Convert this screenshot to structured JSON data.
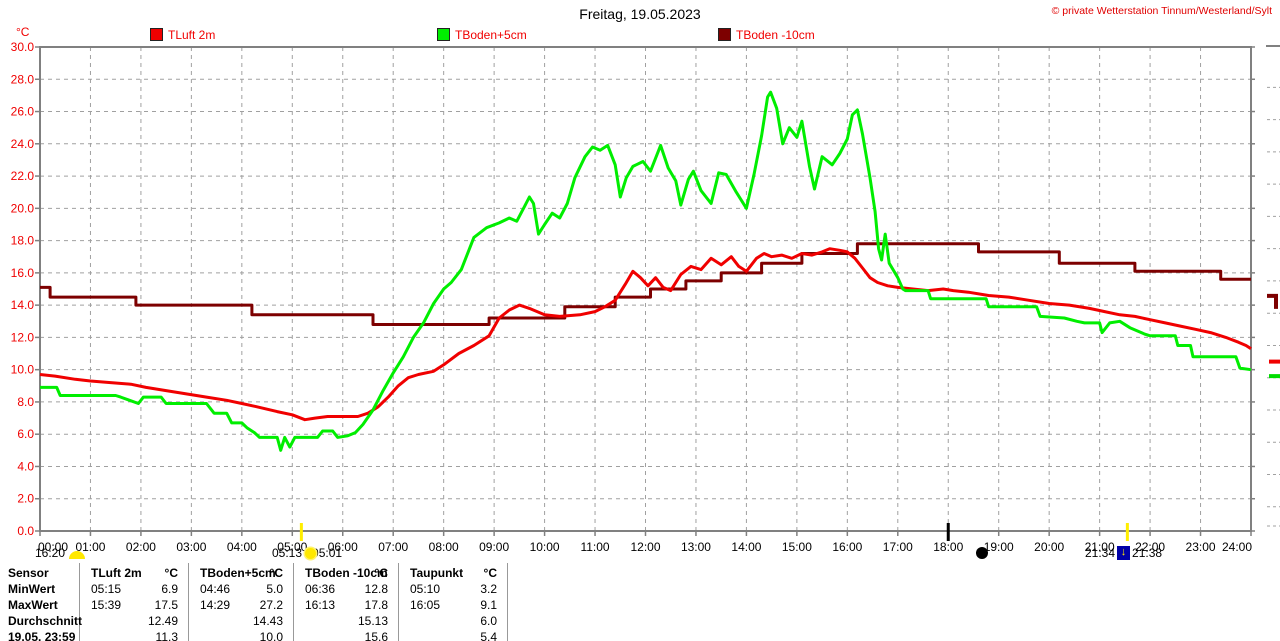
{
  "header": {
    "title": "Freitag, 19.05.2023",
    "copyright": "© private Wetterstation Tinnum/Westerland/Sylt"
  },
  "legend": {
    "unit_label": "°C",
    "items": [
      {
        "label": "TLuft 2m",
        "color": "#f00000"
      },
      {
        "label": "TBoden+5cm",
        "color": "#00ee00"
      },
      {
        "label": "TBoden -10cm",
        "color": "#7d0000"
      }
    ]
  },
  "chart_data": {
    "type": "line",
    "title": "Freitag, 19.05.2023",
    "ylabel": "°C",
    "ylim": [
      0,
      30
    ],
    "y_tick_step": 2,
    "grid": true,
    "legend_position": "top",
    "axis_label_color": "#f00000",
    "x_range_hours": [
      0,
      24
    ],
    "x_tick_labels": [
      "00:00",
      "01:00",
      "02:00",
      "03:00",
      "04:00",
      "05:00",
      "06:00",
      "07:00",
      "08:00",
      "09:00",
      "10:00",
      "11:00",
      "12:00",
      "13:00",
      "14:00",
      "15:00",
      "16:00",
      "17:00",
      "18:00",
      "19:00",
      "20:00",
      "21:00",
      "22:00",
      "23:00",
      "24:00"
    ],
    "y_tick_labels": [
      "30.0",
      "28.0",
      "26.0",
      "24.0",
      "22.0",
      "20.0",
      "18.0",
      "16.0",
      "14.0",
      "12.0",
      "10.0",
      "8.0",
      "6.0",
      "4.0",
      "2.0",
      "0.0"
    ],
    "series": [
      {
        "name": "TBoden -10cm",
        "color": "#7d0000",
        "interpolation": "step",
        "points": [
          [
            0,
            15.1
          ],
          [
            0.2,
            14.5
          ],
          [
            1.9,
            14.0
          ],
          [
            4.2,
            13.4
          ],
          [
            6.6,
            12.8
          ],
          [
            8.9,
            13.2
          ],
          [
            10.4,
            13.9
          ],
          [
            11.4,
            14.5
          ],
          [
            12.1,
            15.0
          ],
          [
            12.8,
            15.5
          ],
          [
            13.5,
            16.0
          ],
          [
            14.3,
            16.6
          ],
          [
            15.1,
            17.2
          ],
          [
            16.2,
            17.8
          ],
          [
            18.6,
            17.3
          ],
          [
            20.2,
            16.6
          ],
          [
            21.7,
            16.1
          ],
          [
            23.4,
            15.6
          ],
          [
            24,
            15.6
          ]
        ]
      },
      {
        "name": "TLuft 2m",
        "color": "#f00000",
        "interpolation": "linear",
        "points": [
          [
            0,
            9.7
          ],
          [
            0.3,
            9.6
          ],
          [
            0.7,
            9.4
          ],
          [
            1,
            9.3
          ],
          [
            1.4,
            9.2
          ],
          [
            1.8,
            9.1
          ],
          [
            2.1,
            8.9
          ],
          [
            2.5,
            8.7
          ],
          [
            2.9,
            8.5
          ],
          [
            3.3,
            8.3
          ],
          [
            3.7,
            8.1
          ],
          [
            4,
            7.9
          ],
          [
            4.3,
            7.7
          ],
          [
            4.7,
            7.4
          ],
          [
            5,
            7.2
          ],
          [
            5.25,
            6.9
          ],
          [
            5.45,
            7.0
          ],
          [
            5.7,
            7.1
          ],
          [
            6,
            7.1
          ],
          [
            6.3,
            7.1
          ],
          [
            6.5,
            7.3
          ],
          [
            6.7,
            7.7
          ],
          [
            6.9,
            8.3
          ],
          [
            7.1,
            9.0
          ],
          [
            7.3,
            9.5
          ],
          [
            7.5,
            9.7
          ],
          [
            7.8,
            9.9
          ],
          [
            8,
            10.3
          ],
          [
            8.3,
            11.0
          ],
          [
            8.6,
            11.5
          ],
          [
            8.9,
            12.1
          ],
          [
            9.1,
            13.2
          ],
          [
            9.3,
            13.7
          ],
          [
            9.5,
            14.0
          ],
          [
            9.7,
            13.8
          ],
          [
            10,
            13.4
          ],
          [
            10.3,
            13.3
          ],
          [
            10.7,
            13.4
          ],
          [
            11,
            13.6
          ],
          [
            11.2,
            13.9
          ],
          [
            11.4,
            14.3
          ],
          [
            11.6,
            15.3
          ],
          [
            11.75,
            16.1
          ],
          [
            11.9,
            15.7
          ],
          [
            12.05,
            15.2
          ],
          [
            12.2,
            15.7
          ],
          [
            12.35,
            15.1
          ],
          [
            12.5,
            14.9
          ],
          [
            12.7,
            15.9
          ],
          [
            12.9,
            16.4
          ],
          [
            13.1,
            16.2
          ],
          [
            13.3,
            16.9
          ],
          [
            13.5,
            16.5
          ],
          [
            13.7,
            17.0
          ],
          [
            13.85,
            16.4
          ],
          [
            14,
            16.1
          ],
          [
            14.2,
            16.9
          ],
          [
            14.35,
            17.2
          ],
          [
            14.5,
            17.0
          ],
          [
            14.7,
            17.1
          ],
          [
            14.9,
            16.9
          ],
          [
            15.1,
            17.2
          ],
          [
            15.3,
            17.1
          ],
          [
            15.5,
            17.3
          ],
          [
            15.65,
            17.5
          ],
          [
            15.85,
            17.4
          ],
          [
            16,
            17.3
          ],
          [
            16.15,
            16.9
          ],
          [
            16.3,
            16.3
          ],
          [
            16.45,
            15.7
          ],
          [
            16.6,
            15.4
          ],
          [
            16.8,
            15.2
          ],
          [
            17,
            15.1
          ],
          [
            17.3,
            15.0
          ],
          [
            17.6,
            14.9
          ],
          [
            17.9,
            15.0
          ],
          [
            18.1,
            14.9
          ],
          [
            18.4,
            14.8
          ],
          [
            18.8,
            14.6
          ],
          [
            19.2,
            14.5
          ],
          [
            19.6,
            14.3
          ],
          [
            20,
            14.1
          ],
          [
            20.4,
            14.0
          ],
          [
            20.8,
            13.8
          ],
          [
            21.1,
            13.6
          ],
          [
            21.4,
            13.4
          ],
          [
            21.7,
            13.3
          ],
          [
            22,
            13.1
          ],
          [
            22.3,
            12.9
          ],
          [
            22.6,
            12.7
          ],
          [
            22.9,
            12.5
          ],
          [
            23.2,
            12.3
          ],
          [
            23.5,
            12.0
          ],
          [
            23.75,
            11.7
          ],
          [
            23.9,
            11.5
          ],
          [
            24,
            11.3
          ]
        ]
      },
      {
        "name": "TBoden+5cm",
        "color": "#00ee00",
        "interpolation": "linear",
        "points": [
          [
            0,
            8.9
          ],
          [
            0.33,
            8.9
          ],
          [
            0.4,
            8.4
          ],
          [
            1.5,
            8.4
          ],
          [
            1.6,
            8.3
          ],
          [
            1.95,
            7.9
          ],
          [
            2.05,
            8.3
          ],
          [
            2.4,
            8.3
          ],
          [
            2.5,
            7.9
          ],
          [
            3.3,
            7.9
          ],
          [
            3.45,
            7.3
          ],
          [
            3.7,
            7.3
          ],
          [
            3.8,
            6.7
          ],
          [
            4,
            6.7
          ],
          [
            4.1,
            6.4
          ],
          [
            4.25,
            6.1
          ],
          [
            4.35,
            5.8
          ],
          [
            4.7,
            5.8
          ],
          [
            4.77,
            5.0
          ],
          [
            4.85,
            5.8
          ],
          [
            4.95,
            5.2
          ],
          [
            5.05,
            5.8
          ],
          [
            5.5,
            5.8
          ],
          [
            5.6,
            6.2
          ],
          [
            5.8,
            6.2
          ],
          [
            5.9,
            5.8
          ],
          [
            6.1,
            5.9
          ],
          [
            6.25,
            6.1
          ],
          [
            6.4,
            6.6
          ],
          [
            6.6,
            7.5
          ],
          [
            6.8,
            8.7
          ],
          [
            7,
            9.8
          ],
          [
            7.2,
            10.8
          ],
          [
            7.4,
            12.0
          ],
          [
            7.6,
            12.9
          ],
          [
            7.8,
            14.1
          ],
          [
            8,
            15.0
          ],
          [
            8.15,
            15.4
          ],
          [
            8.35,
            16.2
          ],
          [
            8.6,
            18.2
          ],
          [
            8.85,
            18.8
          ],
          [
            9.1,
            19.1
          ],
          [
            9.3,
            19.4
          ],
          [
            9.45,
            19.2
          ],
          [
            9.6,
            20.1
          ],
          [
            9.7,
            20.7
          ],
          [
            9.78,
            20.3
          ],
          [
            9.88,
            18.4
          ],
          [
            10,
            19.0
          ],
          [
            10.15,
            19.7
          ],
          [
            10.3,
            19.4
          ],
          [
            10.45,
            20.3
          ],
          [
            10.6,
            21.9
          ],
          [
            10.8,
            23.2
          ],
          [
            10.95,
            23.8
          ],
          [
            11.1,
            23.6
          ],
          [
            11.25,
            23.9
          ],
          [
            11.4,
            22.7
          ],
          [
            11.5,
            20.7
          ],
          [
            11.62,
            21.9
          ],
          [
            11.75,
            22.6
          ],
          [
            11.95,
            22.9
          ],
          [
            12.1,
            22.3
          ],
          [
            12.3,
            23.9
          ],
          [
            12.45,
            22.5
          ],
          [
            12.6,
            21.7
          ],
          [
            12.7,
            20.2
          ],
          [
            12.85,
            21.8
          ],
          [
            12.95,
            22.3
          ],
          [
            13.1,
            21.1
          ],
          [
            13.3,
            20.3
          ],
          [
            13.45,
            22.2
          ],
          [
            13.6,
            22.1
          ],
          [
            13.8,
            21.0
          ],
          [
            14,
            20.0
          ],
          [
            14.15,
            22.1
          ],
          [
            14.3,
            24.5
          ],
          [
            14.42,
            26.9
          ],
          [
            14.48,
            27.2
          ],
          [
            14.6,
            26.2
          ],
          [
            14.72,
            24.0
          ],
          [
            14.85,
            25.0
          ],
          [
            15,
            24.4
          ],
          [
            15.1,
            25.4
          ],
          [
            15.25,
            22.6
          ],
          [
            15.35,
            21.2
          ],
          [
            15.5,
            23.2
          ],
          [
            15.7,
            22.7
          ],
          [
            15.85,
            23.4
          ],
          [
            16,
            24.3
          ],
          [
            16.1,
            25.8
          ],
          [
            16.2,
            26.1
          ],
          [
            16.3,
            24.6
          ],
          [
            16.45,
            21.9
          ],
          [
            16.55,
            19.8
          ],
          [
            16.62,
            17.5
          ],
          [
            16.68,
            16.8
          ],
          [
            16.75,
            18.4
          ],
          [
            16.83,
            16.6
          ],
          [
            17,
            15.7
          ],
          [
            17.1,
            15.0
          ],
          [
            17.15,
            14.9
          ],
          [
            17.6,
            14.9
          ],
          [
            17.65,
            14.4
          ],
          [
            18.75,
            14.4
          ],
          [
            18.8,
            13.9
          ],
          [
            19.75,
            13.9
          ],
          [
            19.82,
            13.3
          ],
          [
            20.3,
            13.2
          ],
          [
            20.55,
            13.0
          ],
          [
            20.7,
            12.9
          ],
          [
            21,
            12.9
          ],
          [
            21.05,
            12.3
          ],
          [
            21.2,
            12.9
          ],
          [
            21.4,
            13.0
          ],
          [
            21.6,
            12.6
          ],
          [
            21.9,
            12.2
          ],
          [
            22,
            12.1
          ],
          [
            22.5,
            12.1
          ],
          [
            22.55,
            11.5
          ],
          [
            22.8,
            11.5
          ],
          [
            22.85,
            10.8
          ],
          [
            23.7,
            10.8
          ],
          [
            23.78,
            10.1
          ],
          [
            24,
            10.0
          ]
        ]
      }
    ],
    "right_edge_markers": [
      {
        "name": "tboden10-marker",
        "color": "#7d0000",
        "temp": 14.2,
        "shape": "flag"
      },
      {
        "name": "tluft-marker",
        "color": "#f00000",
        "temp": 10.5,
        "shape": "dash"
      },
      {
        "name": "tboden5-marker",
        "color": "#00dd00",
        "temp": 9.6,
        "shape": "dash"
      }
    ]
  },
  "axis_annotations": {
    "moon_event": {
      "time": "16:20"
    },
    "sunrise_event": {
      "time": "05:13",
      "time2": "05:01"
    },
    "sunset_event": {
      "time": "21:34",
      "time2": "21:38"
    },
    "new_moon_hour": 18.0,
    "event_ticks": [
      {
        "x_hour": 5.18,
        "color": "#ffee00"
      },
      {
        "x_hour": 18.0,
        "color": "#000000"
      },
      {
        "x_hour": 21.55,
        "color": "#ffee00"
      }
    ]
  },
  "summary_table": {
    "header": {
      "label": "Sensor",
      "cells": [
        [
          "TLuft 2m",
          "°C"
        ],
        [
          "TBoden+5cm",
          "°C"
        ],
        [
          "TBoden -10cm",
          "°C"
        ],
        [
          "Taupunkt",
          "°C"
        ]
      ]
    },
    "rows": [
      {
        "label": "MinWert",
        "cells": [
          [
            "05:15",
            "6.9"
          ],
          [
            "04:46",
            "5.0"
          ],
          [
            "06:36",
            "12.8"
          ],
          [
            "05:10",
            "3.2"
          ]
        ]
      },
      {
        "label": "MaxWert",
        "cells": [
          [
            "15:39",
            "17.5"
          ],
          [
            "14:29",
            "27.2"
          ],
          [
            "16:13",
            "17.8"
          ],
          [
            "16:05",
            "9.1"
          ]
        ]
      },
      {
        "label": "Durchschnitt",
        "cells": [
          [
            "",
            "12.49"
          ],
          [
            "",
            "14.43"
          ],
          [
            "",
            "15.13"
          ],
          [
            "",
            "6.0"
          ]
        ]
      },
      {
        "label": "19.05. 23:59",
        "cells": [
          [
            "",
            "11.3"
          ],
          [
            "",
            "10.0"
          ],
          [
            "",
            "15.6"
          ],
          [
            "",
            "5.4"
          ]
        ]
      }
    ]
  }
}
